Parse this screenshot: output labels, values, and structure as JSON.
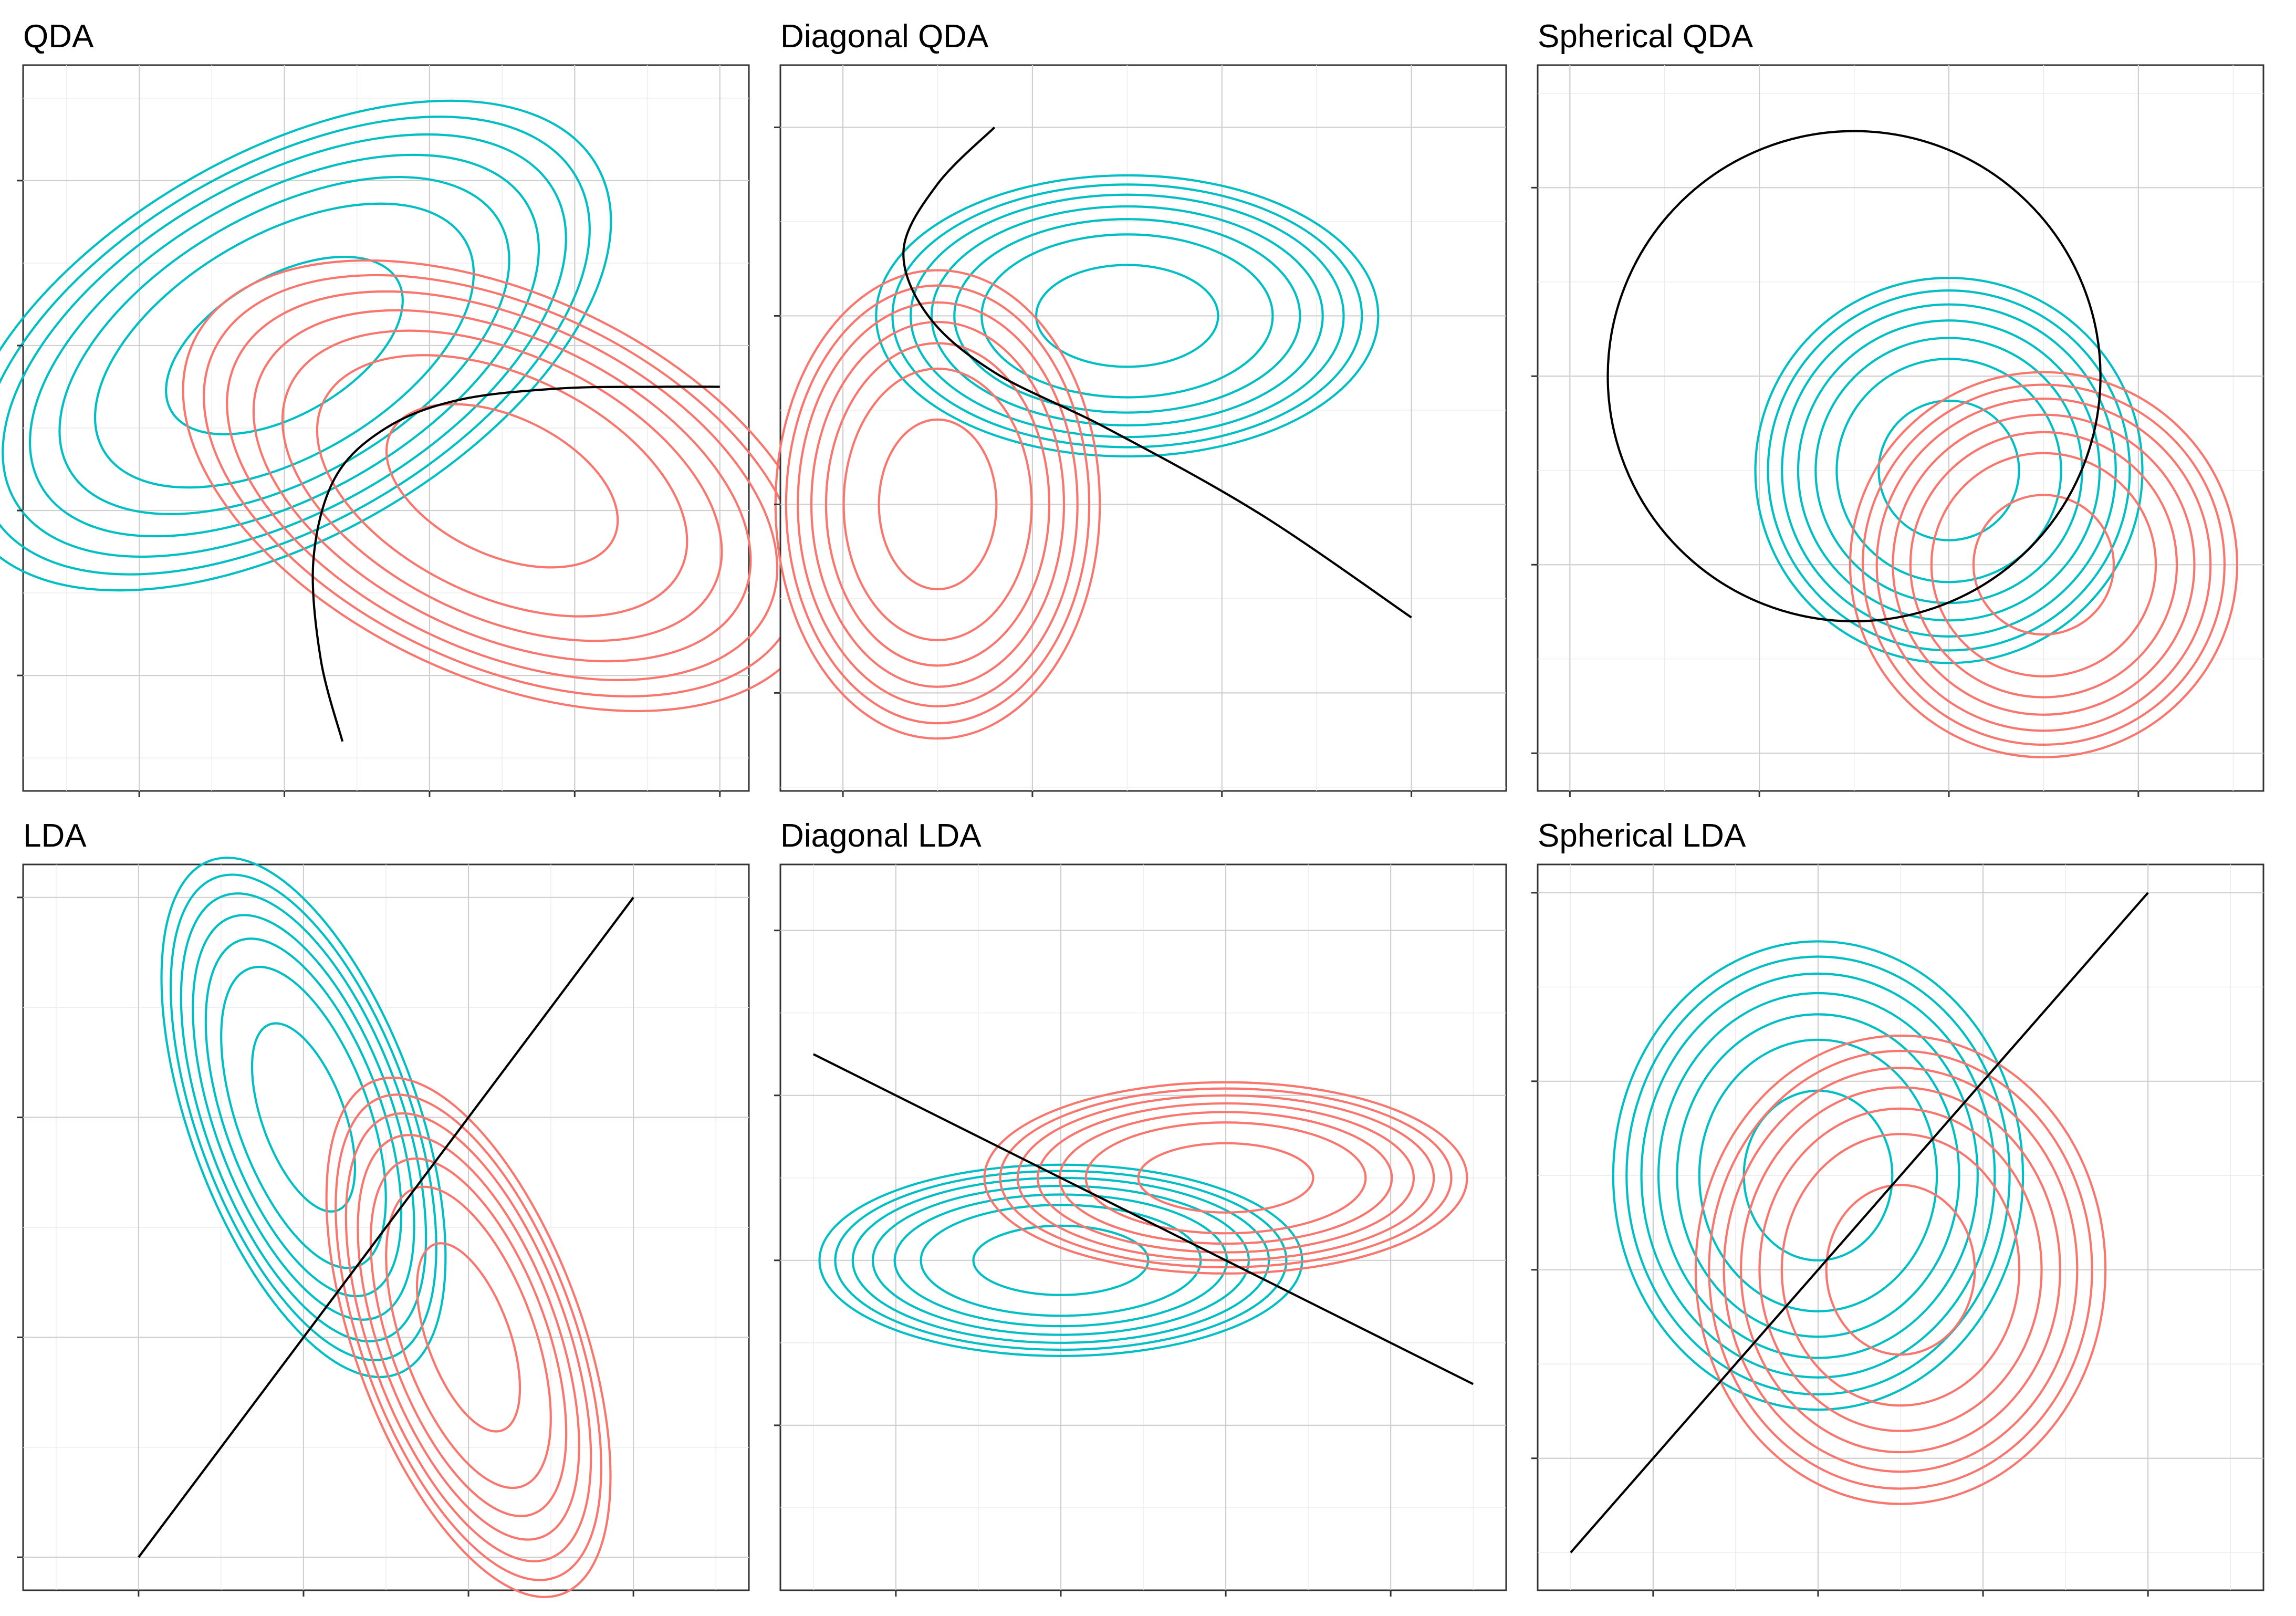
{
  "colors": {
    "class_a": "#00BFC4",
    "class_b": "#F8766D",
    "boundary": "#000000"
  },
  "chart_data": [
    {
      "type": "contour",
      "title": "QDA",
      "xlim": [
        -0.4,
        4.6
      ],
      "ylim": [
        -0.1,
        4.3
      ],
      "xticks": [
        0.4,
        1.4,
        2.4,
        3.4,
        4.4
      ],
      "yticks": [
        0.6,
        1.6,
        2.6,
        3.6
      ],
      "grid": true,
      "classes": [
        {
          "color": "#00BFC4",
          "mean": [
            1.4,
            2.6
          ],
          "rx": 0.9,
          "ry": 0.42,
          "angle_deg": 30,
          "scales": [
            1,
            1.6,
            1.9,
            2.15,
            2.38,
            2.58,
            2.76
          ]
        },
        {
          "color": "#F8766D",
          "mean": [
            2.9,
            1.75
          ],
          "rx": 0.85,
          "ry": 0.42,
          "angle_deg": -25,
          "scales": [
            1,
            1.6,
            1.9,
            2.15,
            2.38,
            2.58,
            2.76
          ]
        }
      ],
      "boundary": {
        "kind": "curve",
        "points": [
          [
            1.8,
            0.2
          ],
          [
            1.65,
            0.7
          ],
          [
            1.6,
            1.3
          ],
          [
            1.75,
            1.8
          ],
          [
            2.1,
            2.1
          ],
          [
            2.6,
            2.27
          ],
          [
            3.3,
            2.34
          ],
          [
            4.0,
            2.35
          ],
          [
            4.4,
            2.35
          ]
        ]
      }
    },
    {
      "type": "contour",
      "title": "Diagonal QDA",
      "xlim": [
        -0.33,
        3.5
      ],
      "ylim": [
        -0.52,
        3.33
      ],
      "xticks": [
        0,
        1,
        2,
        3
      ],
      "yticks": [
        0,
        1,
        2,
        3
      ],
      "grid": true,
      "classes": [
        {
          "color": "#00BFC4",
          "mean": [
            1.5,
            2.0
          ],
          "rx": 0.48,
          "ry": 0.27,
          "angle_deg": 0,
          "scales": [
            1,
            1.6,
            1.9,
            2.15,
            2.38,
            2.58,
            2.76
          ]
        },
        {
          "color": "#F8766D",
          "mean": [
            0.5,
            1.0
          ],
          "rx": 0.31,
          "ry": 0.45,
          "angle_deg": 0,
          "scales": [
            1,
            1.6,
            1.9,
            2.15,
            2.38,
            2.58,
            2.76
          ]
        }
      ],
      "boundary": {
        "kind": "curve",
        "points": [
          [
            0.8,
            3.0
          ],
          [
            0.5,
            2.7
          ],
          [
            0.32,
            2.35
          ],
          [
            0.45,
            2.0
          ],
          [
            0.8,
            1.7
          ],
          [
            1.4,
            1.4
          ],
          [
            2.2,
            0.95
          ],
          [
            3.0,
            0.4
          ]
        ]
      }
    },
    {
      "type": "contour",
      "title": "Spherical QDA",
      "xlim": [
        -0.17,
        3.66
      ],
      "ylim": [
        -0.2,
        3.65
      ],
      "xticks": [
        0,
        1,
        2,
        3
      ],
      "yticks": [
        0,
        1,
        2,
        3
      ],
      "grid": true,
      "classes": [
        {
          "color": "#00BFC4",
          "mean": [
            2.0,
            1.5
          ],
          "rx": 0.37,
          "ry": 0.37,
          "angle_deg": 0,
          "scales": [
            1,
            1.6,
            1.9,
            2.15,
            2.38,
            2.58,
            2.76
          ]
        },
        {
          "color": "#F8766D",
          "mean": [
            2.5,
            1.0
          ],
          "rx": 0.37,
          "ry": 0.37,
          "angle_deg": 0,
          "scales": [
            1,
            1.6,
            1.9,
            2.15,
            2.38,
            2.58,
            2.76
          ]
        }
      ],
      "boundary": {
        "kind": "circle",
        "center": [
          1.5,
          2.0
        ],
        "radius": 1.3
      }
    },
    {
      "type": "contour",
      "title": "LDA",
      "xlim": [
        -0.7,
        3.7
      ],
      "ylim": [
        -0.15,
        3.15
      ],
      "xticks": [
        0,
        1,
        2,
        3
      ],
      "yticks": [
        0,
        1,
        2,
        3
      ],
      "grid": true,
      "classes": [
        {
          "color": "#00BFC4",
          "mean": [
            1.0,
            2.0
          ],
          "rx": 0.25,
          "ry": 0.45,
          "angle_deg": 20,
          "scales": [
            1,
            1.6,
            1.9,
            2.15,
            2.38,
            2.58,
            2.76
          ]
        },
        {
          "color": "#F8766D",
          "mean": [
            2.0,
            1.0
          ],
          "rx": 0.25,
          "ry": 0.45,
          "angle_deg": 20,
          "scales": [
            1,
            1.6,
            1.9,
            2.15,
            2.38,
            2.58,
            2.76
          ]
        }
      ],
      "boundary": {
        "kind": "line",
        "points": [
          [
            0,
            0
          ],
          [
            3,
            3
          ]
        ]
      }
    },
    {
      "type": "contour",
      "title": "Diagonal LDA",
      "xlim": [
        -1.7,
        2.7
      ],
      "ylim": [
        -2.0,
        2.4
      ],
      "xticks": [
        -1,
        0,
        1,
        2
      ],
      "yticks": [
        -1,
        0,
        1,
        2
      ],
      "grid": true,
      "classes": [
        {
          "color": "#00BFC4",
          "mean": [
            0.0,
            0.0
          ],
          "rx": 0.53,
          "ry": 0.21,
          "angle_deg": 0,
          "scales": [
            1,
            1.6,
            1.9,
            2.15,
            2.38,
            2.58,
            2.76
          ]
        },
        {
          "color": "#F8766D",
          "mean": [
            1.0,
            0.5
          ],
          "rx": 0.53,
          "ry": 0.21,
          "angle_deg": 0,
          "scales": [
            1,
            1.6,
            1.9,
            2.15,
            2.38,
            2.58,
            2.76
          ]
        }
      ],
      "boundary": {
        "kind": "line",
        "points": [
          [
            -1.5,
            1.25
          ],
          [
            2.5,
            -0.75
          ]
        ]
      }
    },
    {
      "type": "contour",
      "title": "Spherical LDA",
      "xlim": [
        -1.7,
        2.7
      ],
      "ylim": [
        -1.7,
        2.15
      ],
      "xticks": [
        -1,
        0,
        1,
        2
      ],
      "yticks": [
        -1,
        0,
        1,
        2
      ],
      "grid": true,
      "classes": [
        {
          "color": "#00BFC4",
          "mean": [
            0.0,
            0.5
          ],
          "rx": 0.45,
          "ry": 0.45,
          "angle_deg": 0,
          "scales": [
            1,
            1.6,
            1.9,
            2.15,
            2.38,
            2.58,
            2.76
          ]
        },
        {
          "color": "#F8766D",
          "mean": [
            0.5,
            0.0
          ],
          "rx": 0.45,
          "ry": 0.45,
          "angle_deg": 0,
          "scales": [
            1,
            1.6,
            1.9,
            2.15,
            2.38,
            2.58,
            2.76
          ]
        }
      ],
      "boundary": {
        "kind": "line",
        "points": [
          [
            -1.5,
            -1.5
          ],
          [
            2.0,
            2.0
          ]
        ]
      }
    }
  ]
}
